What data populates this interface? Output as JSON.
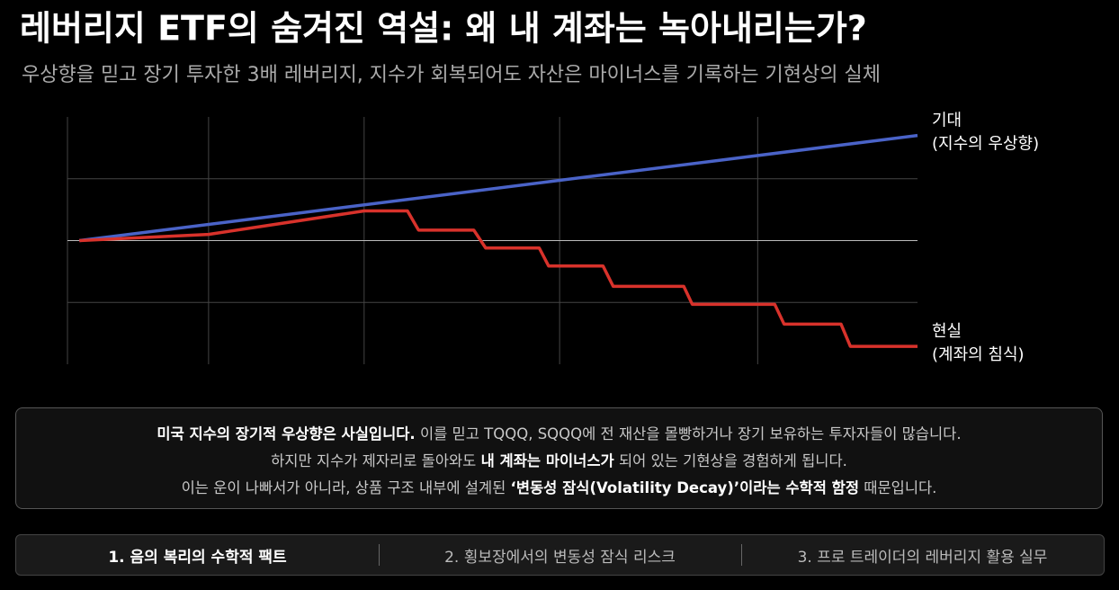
{
  "chart_data": {
    "type": "line",
    "title": "레버리지 ETF의 숨겨진 역설: 왜 내 계좌는 녹아내리는가?",
    "subtitle": "우상향을 믿고 장기 투자한 3배 레버리지, 지수가 회복되어도 자산은 마이너스를 기록하는 기현상의 실체",
    "xlim": [
      0,
      10
    ],
    "ylim": [
      -2,
      2
    ],
    "xticks": [
      1.66,
      3.49,
      5.79,
      8.12
    ],
    "yticks": [
      -1,
      0,
      1
    ],
    "grid": true,
    "series": [
      {
        "name": "기대",
        "note": "(지수의 우상향)",
        "color": "#4a63c8",
        "x": [
          0.14,
          10
        ],
        "values": [
          0,
          1.7
        ]
      },
      {
        "name": "현실",
        "note": "(계좌의 침식)",
        "color": "#d8322b",
        "x": [
          0.14,
          1.66,
          3.49,
          4.0,
          4.13,
          4.78,
          4.92,
          5.55,
          5.66,
          6.3,
          6.42,
          7.25,
          7.35,
          8.32,
          8.43,
          9.1,
          9.21,
          10
        ],
        "values": [
          0,
          0.1,
          0.48,
          0.48,
          0.17,
          0.17,
          -0.12,
          -0.12,
          -0.41,
          -0.41,
          -0.74,
          -0.74,
          -1.03,
          -1.03,
          -1.35,
          -1.35,
          -1.71,
          -1.71
        ]
      }
    ]
  },
  "summary": [
    [
      {
        "text": "미국 지수의 장기적 우상향은 사실입니다.",
        "bold": true
      },
      {
        "text": " 이를 믿고 TQQQ, SQQQ에 전 재산을 몰빵하거나 장기 보유하는 투자자들이 많습니다.",
        "bold": false
      }
    ],
    [
      {
        "text": "하지만 지수가 제자리로 돌아와도 ",
        "bold": false
      },
      {
        "text": "내 계좌는 마이너스가",
        "bold": true
      },
      {
        "text": " 되어 있는 기현상을 경험하게 됩니다.",
        "bold": false
      }
    ],
    [
      {
        "text": "이는 운이 나빠서가 아니라, 상품 구조 내부에 설계된 ",
        "bold": false
      },
      {
        "text": "‘변동성 잠식(Volatility Decay)’이라는 수학적 함정",
        "bold": true
      },
      {
        "text": " 때문입니다.",
        "bold": false
      }
    ]
  ],
  "tabs": [
    "1. 음의 복리의 수학적 팩트",
    "2. 횡보장에서의 변동성 잠식 리스크",
    "3. 프로 트레이더의 레버리지 활용 실무"
  ],
  "active_tab": 0
}
